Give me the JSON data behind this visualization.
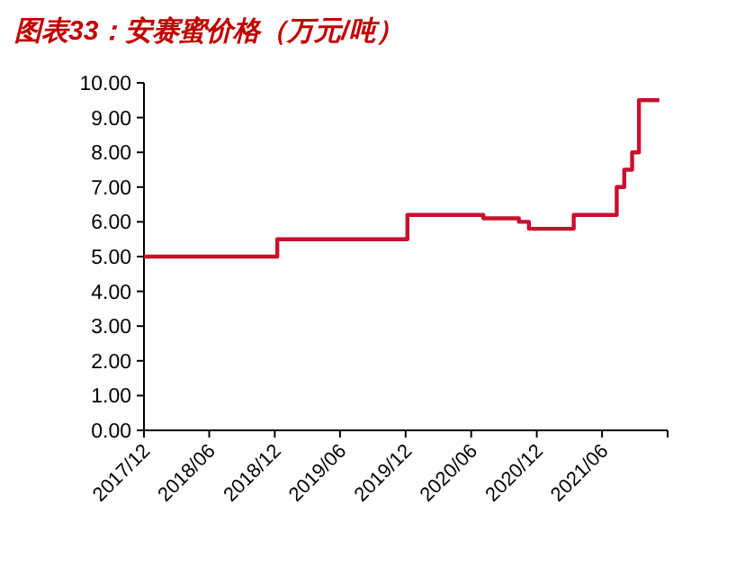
{
  "chart_data": {
    "type": "step",
    "title": "图表33：安赛蜜价格（万元/吨）",
    "x": [
      "2017-12-01",
      "2018-12-08",
      "2019-12-06",
      "2020-07-05",
      "2020-10-12",
      "2020-11-09",
      "2021-03-14",
      "2021-07-12",
      "2021-08-02",
      "2021-08-24",
      "2021-09-12",
      "2021-11-08"
    ],
    "values": [
      5.0,
      5.5,
      6.2,
      6.1,
      6.0,
      5.8,
      6.2,
      7.0,
      7.5,
      8.0,
      9.5,
      9.5
    ],
    "color": "#c8102e",
    "xlim": [
      "2017-12",
      "2021-12"
    ],
    "xticks": [
      {
        "value": "2017-12",
        "label": "2017/12"
      },
      {
        "value": "2018-06",
        "label": "2018/06"
      },
      {
        "value": "2018-12",
        "label": "2018/12"
      },
      {
        "value": "2019-06",
        "label": "2019/06"
      },
      {
        "value": "2019-12",
        "label": "2019/12"
      },
      {
        "value": "2020-06",
        "label": "2020/06"
      },
      {
        "value": "2020-12",
        "label": "2020/12"
      },
      {
        "value": "2021-06",
        "label": "2021/06"
      },
      {
        "value": "2021-12",
        "label": null
      }
    ],
    "ylim": [
      0,
      10
    ],
    "yticks": [
      {
        "value": 0,
        "label": "0.00"
      },
      {
        "value": 1,
        "label": "1.00"
      },
      {
        "value": 2,
        "label": "2.00"
      },
      {
        "value": 3,
        "label": "3.00"
      },
      {
        "value": 4,
        "label": "4.00"
      },
      {
        "value": 5,
        "label": "5.00"
      },
      {
        "value": 6,
        "label": "6.00"
      },
      {
        "value": 7,
        "label": "7.00"
      },
      {
        "value": 8,
        "label": "8.00"
      },
      {
        "value": 9,
        "label": "9.00"
      },
      {
        "value": 10,
        "label": "10.00"
      }
    ]
  }
}
